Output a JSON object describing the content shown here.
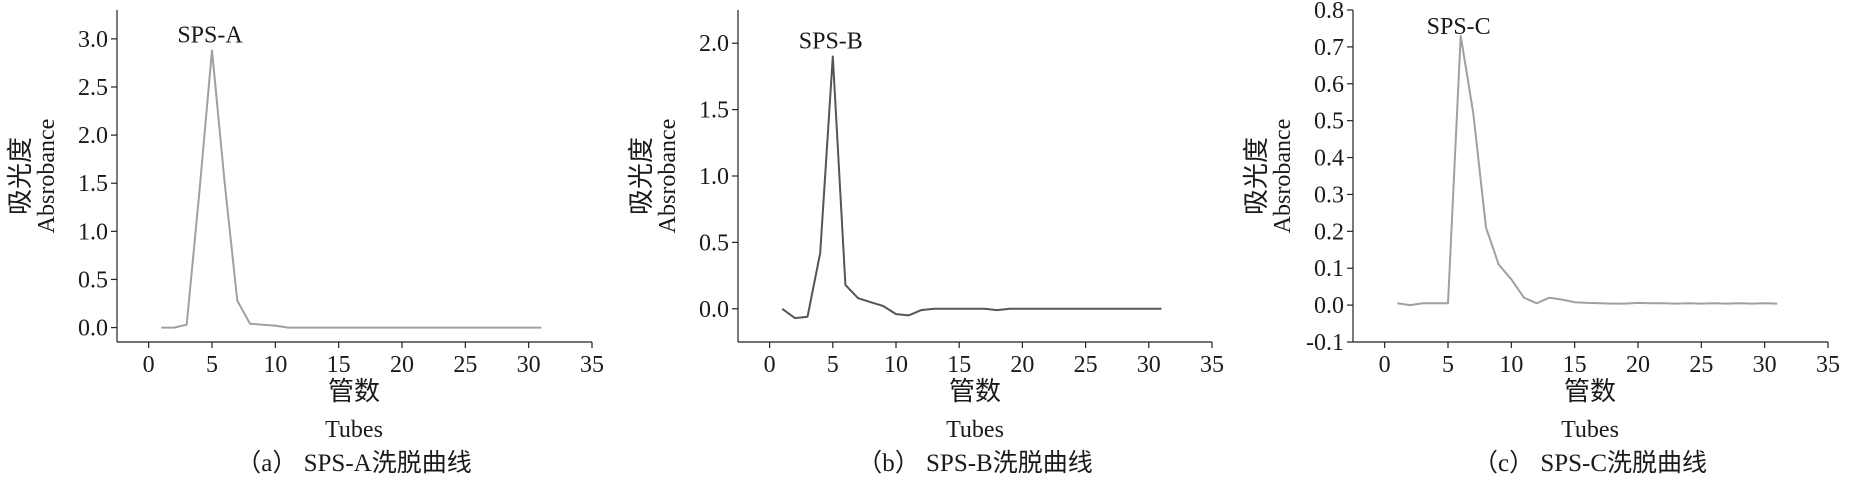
{
  "chart_data": [
    {
      "type": "line",
      "panel_label": "SPS-A",
      "caption": "（a） SPS-A洗脱曲线",
      "xlabel_cn": "管数",
      "xlabel_en": "Tubes",
      "ylabel_cn": "吸光度",
      "ylabel_en": "Absrobance",
      "xlim": [
        -2.5,
        35
      ],
      "ylim": [
        -0.15,
        3.3
      ],
      "xticks": [
        0,
        5,
        10,
        15,
        20,
        25,
        30,
        35
      ],
      "xtick_labels": [
        "0",
        "5",
        "10",
        "15",
        "20",
        "25",
        "30",
        "35"
      ],
      "yticks": [
        0,
        0.5,
        1.0,
        1.5,
        2.0,
        2.5,
        3.0
      ],
      "ytick_labels": [
        "0.0",
        "0.5",
        "1.0",
        "1.5",
        "2.0",
        "2.5",
        "3.0"
      ],
      "line_color": "#a0a0a0",
      "series": [
        {
          "x": [
            1,
            2,
            3,
            4,
            5,
            6,
            7,
            8,
            9,
            10,
            11,
            12,
            13,
            14,
            15,
            16,
            17,
            18,
            19,
            20,
            21,
            22,
            23,
            24,
            25,
            26,
            27,
            28,
            29,
            30,
            31
          ],
          "values": [
            0.0,
            0.0,
            0.03,
            1.4,
            2.88,
            1.5,
            0.28,
            0.04,
            0.03,
            0.02,
            0.0,
            0.0,
            0.0,
            0.0,
            0.0,
            0.0,
            0.0,
            0.0,
            0.0,
            0.0,
            0.0,
            0.0,
            0.0,
            0.0,
            0.0,
            0.0,
            0.0,
            0.0,
            0.0,
            0.0,
            0.0
          ]
        }
      ]
    },
    {
      "type": "line",
      "panel_label": "SPS-B",
      "caption": "（b） SPS-B洗脱曲线",
      "xlabel_cn": "管数",
      "xlabel_en": "Tubes",
      "ylabel_cn": "吸光度",
      "ylabel_en": "Absrobance",
      "xlim": [
        -2.5,
        35
      ],
      "ylim": [
        -0.25,
        2.25
      ],
      "xticks": [
        0,
        5,
        10,
        15,
        20,
        25,
        30,
        35
      ],
      "xtick_labels": [
        "0",
        "5",
        "10",
        "15",
        "20",
        "25",
        "30",
        "35"
      ],
      "yticks": [
        0,
        0.5,
        1.0,
        1.5,
        2.0
      ],
      "ytick_labels": [
        "0.0",
        "0.5",
        "1.0",
        "1.5",
        "2.0"
      ],
      "line_color": "#555555",
      "series": [
        {
          "x": [
            1,
            2,
            3,
            4,
            5,
            6,
            7,
            8,
            9,
            10,
            11,
            12,
            13,
            14,
            15,
            16,
            17,
            18,
            19,
            20,
            21,
            22,
            23,
            24,
            25,
            26,
            27,
            28,
            29,
            30,
            31
          ],
          "values": [
            0.0,
            -0.07,
            -0.06,
            0.42,
            1.9,
            0.18,
            0.08,
            0.05,
            0.02,
            -0.04,
            -0.05,
            -0.01,
            0.0,
            0.0,
            0.0,
            0.0,
            0.0,
            -0.01,
            0.0,
            0.0,
            0.0,
            0.0,
            0.0,
            0.0,
            0.0,
            0.0,
            0.0,
            0.0,
            0.0,
            0.0,
            0.0
          ]
        }
      ]
    },
    {
      "type": "line",
      "panel_label": "SPS-C",
      "caption": "（c） SPS-C洗脱曲线",
      "xlabel_cn": "管数",
      "xlabel_en": "Tubes",
      "ylabel_cn": "吸光度",
      "ylabel_en": "Absrobance",
      "xlim": [
        -2.5,
        35
      ],
      "ylim": [
        -0.1,
        0.8
      ],
      "xticks": [
        0,
        5,
        10,
        15,
        20,
        25,
        30,
        35
      ],
      "xtick_labels": [
        "0",
        "5",
        "10",
        "15",
        "20",
        "25",
        "30",
        "35"
      ],
      "yticks": [
        -0.1,
        0,
        0.1,
        0.2,
        0.3,
        0.4,
        0.5,
        0.6,
        0.7,
        0.8
      ],
      "ytick_labels": [
        "-0.1",
        "0.0",
        "0.1",
        "0.2",
        "0.3",
        "0.4",
        "0.5",
        "0.6",
        "0.7",
        "0.8"
      ],
      "line_color": "#a0a0a0",
      "series": [
        {
          "x": [
            1,
            2,
            3,
            4,
            5,
            6,
            7,
            8,
            9,
            10,
            11,
            12,
            13,
            14,
            15,
            16,
            17,
            18,
            19,
            20,
            21,
            22,
            23,
            24,
            25,
            26,
            27,
            28,
            29,
            30,
            31
          ],
          "values": [
            0.005,
            0.0,
            0.005,
            0.005,
            0.005,
            0.73,
            0.52,
            0.21,
            0.11,
            0.07,
            0.02,
            0.005,
            0.02,
            0.015,
            0.008,
            0.006,
            0.005,
            0.004,
            0.004,
            0.006,
            0.005,
            0.005,
            0.004,
            0.005,
            0.004,
            0.005,
            0.004,
            0.005,
            0.004,
            0.005,
            0.004
          ]
        }
      ]
    }
  ]
}
